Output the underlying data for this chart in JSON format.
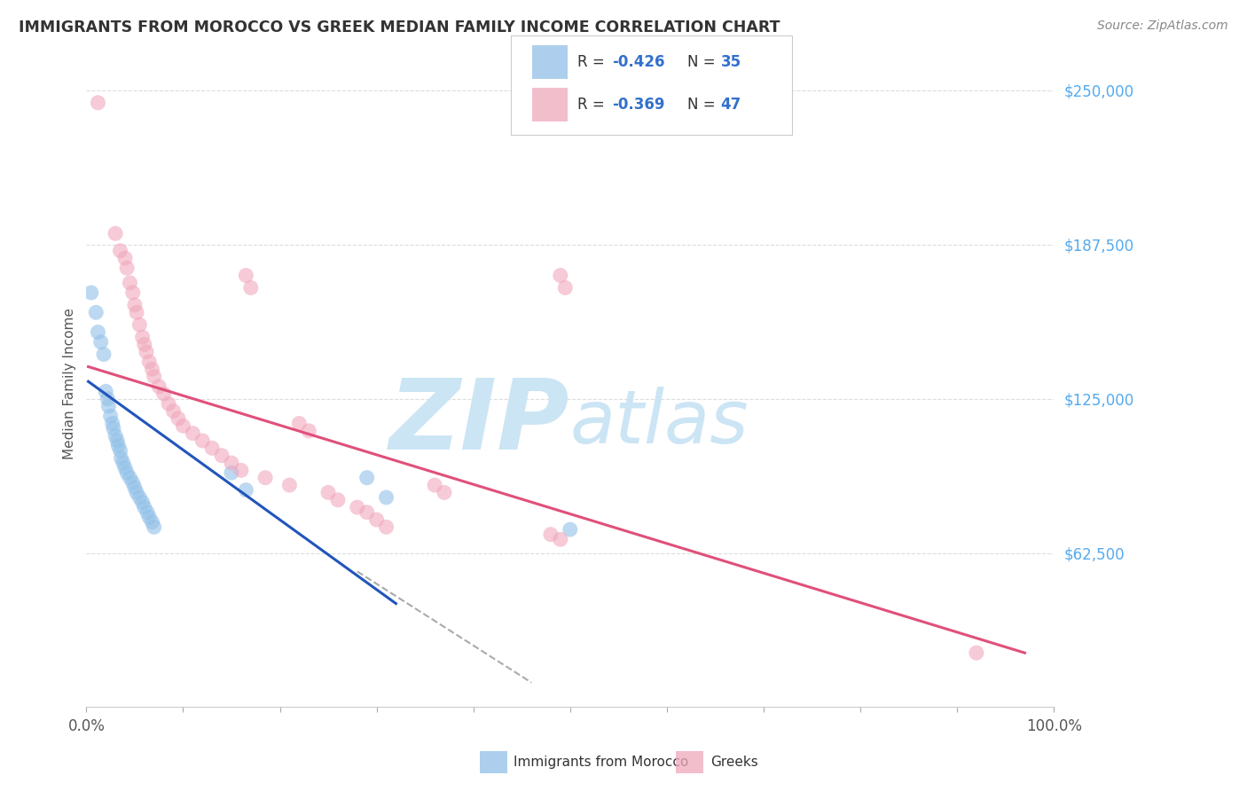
{
  "title": "IMMIGRANTS FROM MOROCCO VS GREEK MEDIAN FAMILY INCOME CORRELATION CHART",
  "source": "Source: ZipAtlas.com",
  "ylabel": "Median Family Income",
  "xlim": [
    0,
    1.0
  ],
  "ylim": [
    0,
    262000
  ],
  "ytick_values": [
    62500,
    125000,
    187500,
    250000
  ],
  "ytick_labels": [
    "$62,500",
    "$125,000",
    "$187,500",
    "$250,000"
  ],
  "background_color": "#ffffff",
  "watermark_zip": "ZIP",
  "watermark_atlas": "atlas",
  "watermark_color": "#cce5f5",
  "legend_r1": "R = -0.426",
  "legend_n1": "N = 35",
  "legend_r2": "R = -0.369",
  "legend_n2": "N = 47",
  "blue_color": "#92c0e8",
  "pink_color": "#f0a8bc",
  "blue_line_color": "#2255bb",
  "pink_line_color": "#e0507a",
  "text_color_r": "#3370cc",
  "text_color_n": "#3370cc",
  "scatter_blue": [
    [
      0.005,
      168000
    ],
    [
      0.01,
      160000
    ],
    [
      0.012,
      152000
    ],
    [
      0.015,
      148000
    ],
    [
      0.018,
      143000
    ],
    [
      0.02,
      128000
    ],
    [
      0.022,
      125000
    ],
    [
      0.023,
      122000
    ],
    [
      0.025,
      118000
    ],
    [
      0.027,
      115000
    ],
    [
      0.028,
      113000
    ],
    [
      0.03,
      110000
    ],
    [
      0.032,
      108000
    ],
    [
      0.033,
      106000
    ],
    [
      0.035,
      104000
    ],
    [
      0.036,
      101000
    ],
    [
      0.038,
      99000
    ],
    [
      0.04,
      97000
    ],
    [
      0.042,
      95000
    ],
    [
      0.045,
      93000
    ],
    [
      0.048,
      91000
    ],
    [
      0.05,
      89000
    ],
    [
      0.052,
      87000
    ],
    [
      0.055,
      85000
    ],
    [
      0.058,
      83000
    ],
    [
      0.06,
      81000
    ],
    [
      0.063,
      79000
    ],
    [
      0.065,
      77000
    ],
    [
      0.068,
      75000
    ],
    [
      0.07,
      73000
    ],
    [
      0.15,
      95000
    ],
    [
      0.165,
      88000
    ],
    [
      0.29,
      93000
    ],
    [
      0.31,
      85000
    ],
    [
      0.5,
      72000
    ]
  ],
  "scatter_pink": [
    [
      0.012,
      245000
    ],
    [
      0.03,
      192000
    ],
    [
      0.035,
      185000
    ],
    [
      0.04,
      182000
    ],
    [
      0.042,
      178000
    ],
    [
      0.045,
      172000
    ],
    [
      0.048,
      168000
    ],
    [
      0.05,
      163000
    ],
    [
      0.052,
      160000
    ],
    [
      0.055,
      155000
    ],
    [
      0.058,
      150000
    ],
    [
      0.06,
      147000
    ],
    [
      0.062,
      144000
    ],
    [
      0.065,
      140000
    ],
    [
      0.068,
      137000
    ],
    [
      0.07,
      134000
    ],
    [
      0.075,
      130000
    ],
    [
      0.08,
      127000
    ],
    [
      0.085,
      123000
    ],
    [
      0.09,
      120000
    ],
    [
      0.095,
      117000
    ],
    [
      0.1,
      114000
    ],
    [
      0.11,
      111000
    ],
    [
      0.12,
      108000
    ],
    [
      0.13,
      105000
    ],
    [
      0.14,
      102000
    ],
    [
      0.15,
      99000
    ],
    [
      0.16,
      96000
    ],
    [
      0.165,
      175000
    ],
    [
      0.17,
      170000
    ],
    [
      0.185,
      93000
    ],
    [
      0.21,
      90000
    ],
    [
      0.22,
      115000
    ],
    [
      0.23,
      112000
    ],
    [
      0.25,
      87000
    ],
    [
      0.26,
      84000
    ],
    [
      0.28,
      81000
    ],
    [
      0.29,
      79000
    ],
    [
      0.3,
      76000
    ],
    [
      0.31,
      73000
    ],
    [
      0.36,
      90000
    ],
    [
      0.37,
      87000
    ],
    [
      0.48,
      70000
    ],
    [
      0.49,
      68000
    ],
    [
      0.49,
      175000
    ],
    [
      0.495,
      170000
    ],
    [
      0.92,
      22000
    ]
  ],
  "blue_trend_x": [
    0.002,
    0.32
  ],
  "blue_trend_y": [
    132000,
    42000
  ],
  "pink_trend_x": [
    0.002,
    0.97
  ],
  "pink_trend_y": [
    138000,
    22000
  ],
  "dashed_trend_x": [
    0.28,
    0.46
  ],
  "dashed_trend_y": [
    55000,
    10000
  ]
}
